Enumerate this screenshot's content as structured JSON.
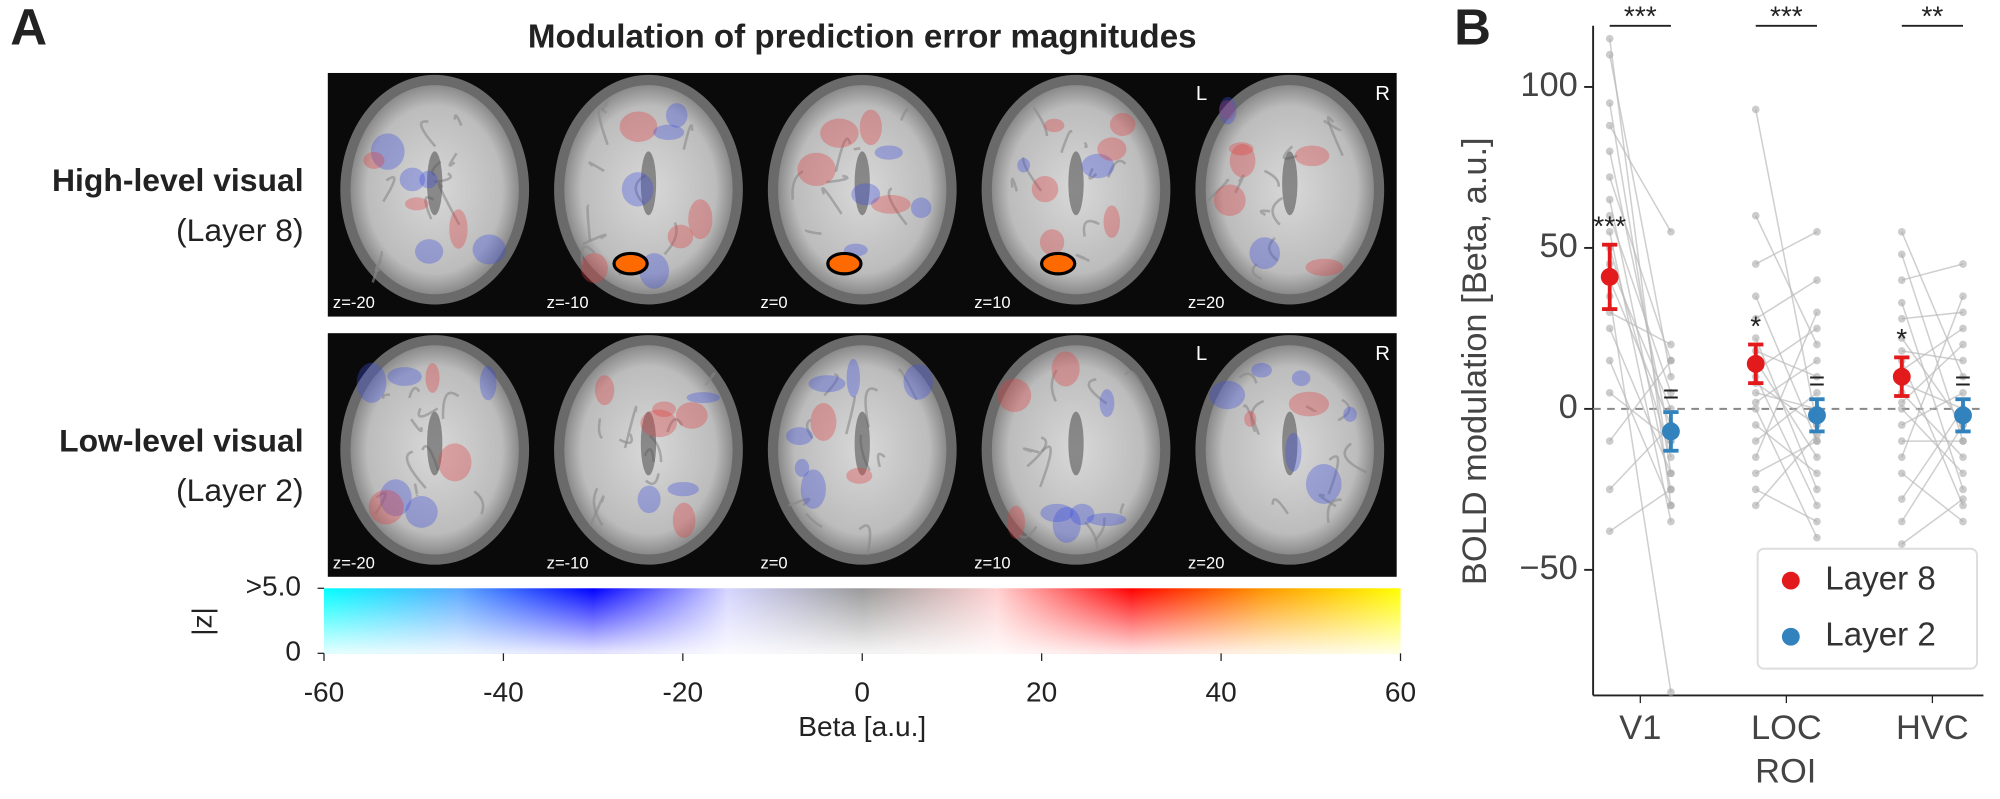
{
  "panel_a": {
    "letter": "A",
    "title": "Modulation of prediction error magnitudes",
    "rows": [
      {
        "label": "High-level visual",
        "sublabel": "(Layer 8)"
      },
      {
        "label": "Low-level visual",
        "sublabel": "(Layer 2)"
      }
    ],
    "slices": [
      "z=-20",
      "z=-10",
      "z=0",
      "z=10",
      "z=20"
    ],
    "orientation": [
      "L",
      "R"
    ],
    "colorbar": {
      "label": "Beta [a.u.]",
      "xlim": [
        -60,
        60
      ],
      "xticks": [
        -60,
        -40,
        -20,
        0,
        20,
        40,
        60
      ],
      "colors": [
        "#00ffff",
        "#5aa8ff",
        "#0000ff",
        "#d4d4ff",
        "#9a9a9a",
        "#ffd0d0",
        "#ff0000",
        "#ff9900",
        "#ffff00"
      ],
      "zlabel": "|z|",
      "zlim": [
        0,
        5
      ],
      "zticks": [
        0,
        {
          "value": 5,
          "label": ">5.0"
        }
      ]
    }
  },
  "chart_data": {
    "type": "paired_points",
    "letter": "B",
    "xlabel": "ROI",
    "ylabel": "BOLD modulation [Beta, a.u.]",
    "categories": [
      "V1",
      "LOC",
      "HVC"
    ],
    "ylim": [
      -89,
      119
    ],
    "yticks": [
      {
        "value": -50,
        "label": "−50"
      },
      0,
      50,
      100
    ],
    "zero_line": true,
    "legend": "lower right",
    "comparisons": [
      "***",
      "***",
      "**"
    ],
    "series": [
      {
        "name": "Layer 8",
        "color": "#e31a1c",
        "values": [
          41,
          14,
          10
        ],
        "errors": [
          10,
          6,
          6
        ],
        "labels": [
          "***",
          "*",
          "*"
        ],
        "subjects": [
          [
            115,
            110,
            95,
            88,
            80,
            72,
            65,
            60,
            55,
            50,
            45,
            40,
            35,
            30,
            25,
            15,
            5,
            -10,
            -25,
            -38
          ],
          [
            93,
            60,
            45,
            35,
            28,
            22,
            18,
            15,
            12,
            10,
            8,
            5,
            2,
            0,
            -5,
            -10,
            -15,
            -20,
            -25,
            -30
          ],
          [
            55,
            48,
            40,
            33,
            28,
            22,
            18,
            15,
            12,
            8,
            5,
            2,
            0,
            -5,
            -10,
            -15,
            -20,
            -28,
            -35,
            -42
          ]
        ]
      },
      {
        "name": "Layer 2",
        "color": "#3182bd",
        "values": [
          -7,
          -2,
          -2
        ],
        "errors": [
          6,
          5,
          5
        ],
        "labels": [
          "=",
          "=",
          "="
        ],
        "subjects": [
          [
            -30,
            10,
            -20,
            55,
            -10,
            15,
            -25,
            5,
            -35,
            -15,
            0,
            -5,
            -88,
            20,
            -20,
            -30,
            -10,
            15,
            -5,
            -25
          ],
          [
            -5,
            20,
            55,
            -10,
            40,
            -25,
            10,
            -15,
            25,
            -30,
            -5,
            0,
            15,
            -40,
            -20,
            5,
            30,
            -10,
            -35,
            -8
          ],
          [
            10,
            -10,
            45,
            -25,
            30,
            -5,
            15,
            -30,
            25,
            0,
            -15,
            20,
            -20,
            5,
            -10,
            35,
            -35,
            0,
            -5,
            -28
          ]
        ]
      }
    ]
  }
}
